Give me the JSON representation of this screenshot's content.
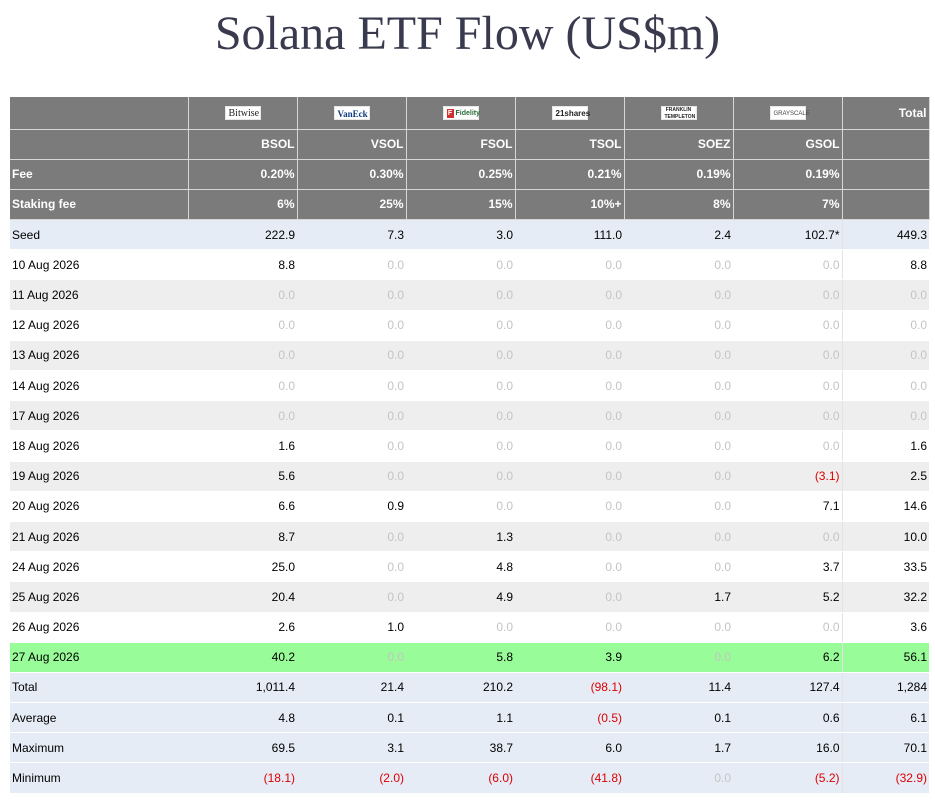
{
  "title": "Solana ETF Flow (US$m)",
  "issuers": [
    {
      "name": "Bitwise",
      "logo": "bitwise-logo",
      "ticker": "BSOL",
      "fee": "0.20%",
      "staking_fee": "6%"
    },
    {
      "name": "VanEck",
      "logo": "vaneck-logo",
      "ticker": "VSOL",
      "fee": "0.30%",
      "staking_fee": "25%"
    },
    {
      "name": "Fidelity",
      "logo": "fidelity-logo",
      "ticker": "FSOL",
      "fee": "0.25%",
      "staking_fee": "15%"
    },
    {
      "name": "21shares",
      "logo": "21shares-logo",
      "ticker": "TSOL",
      "fee": "0.21%",
      "staking_fee": "10%+"
    },
    {
      "name": "FRANKLIN TEMPLETON",
      "logo": "franklin-templeton-logo",
      "ticker": "SOEZ",
      "fee": "0.19%",
      "staking_fee": "8%"
    },
    {
      "name": "GRAYSCALE",
      "logo": "grayscale-logo",
      "ticker": "GSOL",
      "fee": "0.19%",
      "staking_fee": "7%"
    }
  ],
  "header": {
    "total": "Total",
    "fee_label": "Fee",
    "staking_fee_label": "Staking fee"
  },
  "rows": [
    {
      "label": "Seed",
      "style": "blue",
      "values": [
        "222.9",
        "7.3",
        "3.0",
        "111.0",
        "2.4",
        "102.7*",
        "449.3"
      ]
    },
    {
      "label": "10 Aug 2026",
      "style": "white",
      "values": [
        "8.8",
        "0.0",
        "0.0",
        "0.0",
        "0.0",
        "0.0",
        "8.8"
      ]
    },
    {
      "label": "11 Aug 2026",
      "style": "grey",
      "values": [
        "0.0",
        "0.0",
        "0.0",
        "0.0",
        "0.0",
        "0.0",
        "0.0"
      ]
    },
    {
      "label": "12 Aug 2026",
      "style": "white",
      "values": [
        "0.0",
        "0.0",
        "0.0",
        "0.0",
        "0.0",
        "0.0",
        "0.0"
      ]
    },
    {
      "label": "13 Aug 2026",
      "style": "grey",
      "values": [
        "0.0",
        "0.0",
        "0.0",
        "0.0",
        "0.0",
        "0.0",
        "0.0"
      ]
    },
    {
      "label": "14 Aug 2026",
      "style": "white",
      "values": [
        "0.0",
        "0.0",
        "0.0",
        "0.0",
        "0.0",
        "0.0",
        "0.0"
      ]
    },
    {
      "label": "17 Aug 2026",
      "style": "grey",
      "values": [
        "0.0",
        "0.0",
        "0.0",
        "0.0",
        "0.0",
        "0.0",
        "0.0"
      ]
    },
    {
      "label": "18 Aug 2026",
      "style": "white",
      "values": [
        "1.6",
        "0.0",
        "0.0",
        "0.0",
        "0.0",
        "0.0",
        "1.6"
      ]
    },
    {
      "label": "19 Aug 2026",
      "style": "grey",
      "values": [
        "5.6",
        "0.0",
        "0.0",
        "0.0",
        "0.0",
        "(3.1)",
        "2.5"
      ]
    },
    {
      "label": "20 Aug 2026",
      "style": "white",
      "values": [
        "6.6",
        "0.9",
        "0.0",
        "0.0",
        "0.0",
        "7.1",
        "14.6"
      ]
    },
    {
      "label": "21 Aug 2026",
      "style": "grey",
      "values": [
        "8.7",
        "0.0",
        "1.3",
        "0.0",
        "0.0",
        "0.0",
        "10.0"
      ]
    },
    {
      "label": "24 Aug 2026",
      "style": "white",
      "values": [
        "25.0",
        "0.0",
        "4.8",
        "0.0",
        "0.0",
        "3.7",
        "33.5"
      ]
    },
    {
      "label": "25 Aug 2026",
      "style": "grey",
      "values": [
        "20.4",
        "0.0",
        "4.9",
        "0.0",
        "1.7",
        "5.2",
        "32.2"
      ]
    },
    {
      "label": "26 Aug 2026",
      "style": "white",
      "values": [
        "2.6",
        "1.0",
        "0.0",
        "0.0",
        "0.0",
        "0.0",
        "3.6"
      ]
    },
    {
      "label": "27 Aug 2026",
      "style": "green",
      "values": [
        "40.2",
        "0.0",
        "5.8",
        "3.9",
        "0.0",
        "6.2",
        "56.1"
      ]
    },
    {
      "label": "Total",
      "style": "blue",
      "values": [
        "1,011.4",
        "21.4",
        "210.2",
        "(98.1)",
        "11.4",
        "127.4",
        "1,284"
      ]
    },
    {
      "label": "Average",
      "style": "blue",
      "values": [
        "4.8",
        "0.1",
        "1.1",
        "(0.5)",
        "0.1",
        "0.6",
        "6.1"
      ]
    },
    {
      "label": "Maximum",
      "style": "blue",
      "values": [
        "69.5",
        "3.1",
        "38.7",
        "6.0",
        "1.7",
        "16.0",
        "70.1"
      ]
    },
    {
      "label": "Minimum",
      "style": "blue",
      "values": [
        "(18.1)",
        "(2.0)",
        "(6.0)",
        "(41.8)",
        "0.0",
        "(5.2)",
        "(32.9)"
      ]
    }
  ],
  "colors": {
    "header_bg": "#7b7b7b",
    "summary_bg": "#e6ecf6",
    "alt_row_bg": "#eeeeee",
    "highlight_bg": "#98fc98",
    "negative": "#dd0000",
    "zero": "#c4c4c4"
  }
}
